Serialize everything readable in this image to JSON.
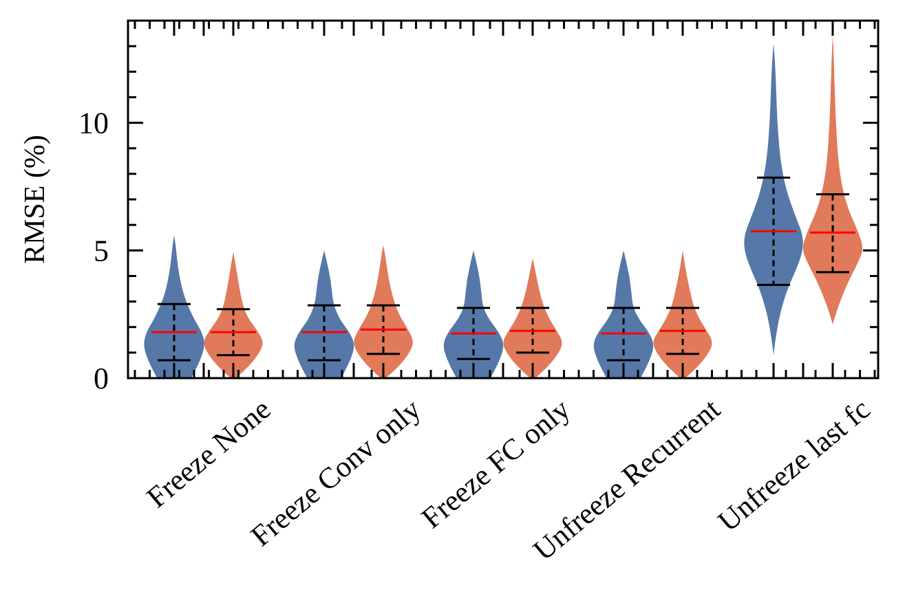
{
  "chart_data": {
    "type": "violin",
    "ylabel": "RMSE (%)",
    "ylim": [
      0,
      14
    ],
    "yticks": [
      0,
      5,
      10
    ],
    "yticks_minor_step": 1,
    "grid": false,
    "legend": "none",
    "categories": [
      "Freeze None",
      "Freeze Conv only",
      "Freeze FC only",
      "Unfreeze Recurrent",
      "Unfreeze last fc"
    ],
    "colors": {
      "series_a": "#5578a8",
      "series_b": "#e07a5a",
      "median": "#ff0000",
      "whisker": "#000000"
    },
    "series": [
      {
        "color": "#5578a8",
        "violins": [
          {
            "min": 0,
            "max": 5.6,
            "p10": 0.7,
            "median": 1.8,
            "p90": 2.9,
            "shape": [
              [
                0,
                0.55
              ],
              [
                0.7,
                0.85
              ],
              [
                1.3,
                1.0
              ],
              [
                1.8,
                0.9
              ],
              [
                2.3,
                0.65
              ],
              [
                2.9,
                0.42
              ],
              [
                3.4,
                0.28
              ],
              [
                4.0,
                0.17
              ],
              [
                4.6,
                0.1
              ],
              [
                5.2,
                0.05
              ],
              [
                5.6,
                0
              ]
            ]
          },
          {
            "min": 0,
            "max": 5.0,
            "p10": 0.7,
            "median": 1.8,
            "p90": 2.85,
            "shape": [
              [
                0,
                0.55
              ],
              [
                0.7,
                0.85
              ],
              [
                1.3,
                1.0
              ],
              [
                1.8,
                0.82
              ],
              [
                2.3,
                0.5
              ],
              [
                2.9,
                0.3
              ],
              [
                3.4,
                0.25
              ],
              [
                3.9,
                0.2
              ],
              [
                4.5,
                0.1
              ],
              [
                5.0,
                0
              ]
            ]
          },
          {
            "min": 0,
            "max": 5.0,
            "p10": 0.75,
            "median": 1.75,
            "p90": 2.75,
            "shape": [
              [
                0,
                0.55
              ],
              [
                0.7,
                0.85
              ],
              [
                1.3,
                1.0
              ],
              [
                1.8,
                0.82
              ],
              [
                2.3,
                0.5
              ],
              [
                2.8,
                0.3
              ],
              [
                3.4,
                0.25
              ],
              [
                3.9,
                0.2
              ],
              [
                4.5,
                0.1
              ],
              [
                5.0,
                0
              ]
            ]
          },
          {
            "min": 0,
            "max": 5.0,
            "p10": 0.7,
            "median": 1.75,
            "p90": 2.75,
            "shape": [
              [
                0,
                0.55
              ],
              [
                0.7,
                0.85
              ],
              [
                1.3,
                1.0
              ],
              [
                1.8,
                0.82
              ],
              [
                2.3,
                0.5
              ],
              [
                2.8,
                0.3
              ],
              [
                3.4,
                0.25
              ],
              [
                3.9,
                0.2
              ],
              [
                4.5,
                0.1
              ],
              [
                5.0,
                0
              ]
            ]
          },
          {
            "min": 0.9,
            "max": 13.1,
            "p10": 3.65,
            "median": 5.75,
            "p90": 7.85,
            "shape": [
              [
                0.9,
                0
              ],
              [
                1.5,
                0.06
              ],
              [
                2.5,
                0.2
              ],
              [
                3.5,
                0.45
              ],
              [
                4.3,
                0.75
              ],
              [
                5.0,
                0.95
              ],
              [
                5.6,
                0.95
              ],
              [
                6.3,
                0.72
              ],
              [
                7.3,
                0.42
              ],
              [
                8.5,
                0.22
              ],
              [
                10.0,
                0.12
              ],
              [
                11.5,
                0.08
              ],
              [
                12.5,
                0.04
              ],
              [
                13.1,
                0
              ]
            ]
          }
        ]
      },
      {
        "color": "#e07a5a",
        "violins": [
          {
            "min": 0,
            "max": 4.95,
            "p10": 0.9,
            "median": 1.8,
            "p90": 2.7,
            "shape": [
              [
                0,
                0.08
              ],
              [
                0.4,
                0.45
              ],
              [
                0.9,
                0.8
              ],
              [
                1.4,
                1.0
              ],
              [
                1.9,
                0.75
              ],
              [
                2.4,
                0.45
              ],
              [
                2.9,
                0.3
              ],
              [
                3.5,
                0.2
              ],
              [
                4.1,
                0.12
              ],
              [
                4.6,
                0.05
              ],
              [
                4.95,
                0
              ]
            ]
          },
          {
            "min": 0,
            "max": 5.2,
            "p10": 0.95,
            "median": 1.9,
            "p90": 2.85,
            "shape": [
              [
                0,
                0.08
              ],
              [
                0.4,
                0.45
              ],
              [
                0.9,
                0.8
              ],
              [
                1.4,
                1.0
              ],
              [
                1.9,
                0.8
              ],
              [
                2.5,
                0.5
              ],
              [
                3.0,
                0.35
              ],
              [
                3.6,
                0.22
              ],
              [
                4.3,
                0.12
              ],
              [
                4.9,
                0.05
              ],
              [
                5.2,
                0
              ]
            ]
          },
          {
            "min": 0,
            "max": 4.7,
            "p10": 1.0,
            "median": 1.85,
            "p90": 2.75,
            "shape": [
              [
                0,
                0.08
              ],
              [
                0.4,
                0.45
              ],
              [
                0.9,
                0.8
              ],
              [
                1.4,
                1.0
              ],
              [
                1.9,
                0.75
              ],
              [
                2.4,
                0.5
              ],
              [
                2.9,
                0.33
              ],
              [
                3.5,
                0.2
              ],
              [
                4.1,
                0.1
              ],
              [
                4.7,
                0
              ]
            ]
          },
          {
            "min": 0,
            "max": 5.0,
            "p10": 0.95,
            "median": 1.85,
            "p90": 2.75,
            "shape": [
              [
                0,
                0.08
              ],
              [
                0.4,
                0.45
              ],
              [
                0.9,
                0.8
              ],
              [
                1.4,
                1.0
              ],
              [
                1.9,
                0.75
              ],
              [
                2.4,
                0.5
              ],
              [
                2.9,
                0.33
              ],
              [
                3.5,
                0.22
              ],
              [
                4.2,
                0.1
              ],
              [
                5.0,
                0
              ]
            ]
          },
          {
            "min": 2.1,
            "max": 13.4,
            "p10": 4.15,
            "median": 5.7,
            "p90": 7.2,
            "shape": [
              [
                2.1,
                0
              ],
              [
                2.6,
                0.12
              ],
              [
                3.2,
                0.3
              ],
              [
                3.9,
                0.55
              ],
              [
                4.6,
                0.85
              ],
              [
                5.1,
                1.0
              ],
              [
                5.8,
                0.8
              ],
              [
                6.6,
                0.5
              ],
              [
                7.5,
                0.3
              ],
              [
                8.5,
                0.18
              ],
              [
                10.0,
                0.1
              ],
              [
                11.5,
                0.06
              ],
              [
                12.7,
                0.03
              ],
              [
                13.4,
                0
              ]
            ]
          }
        ]
      }
    ]
  }
}
